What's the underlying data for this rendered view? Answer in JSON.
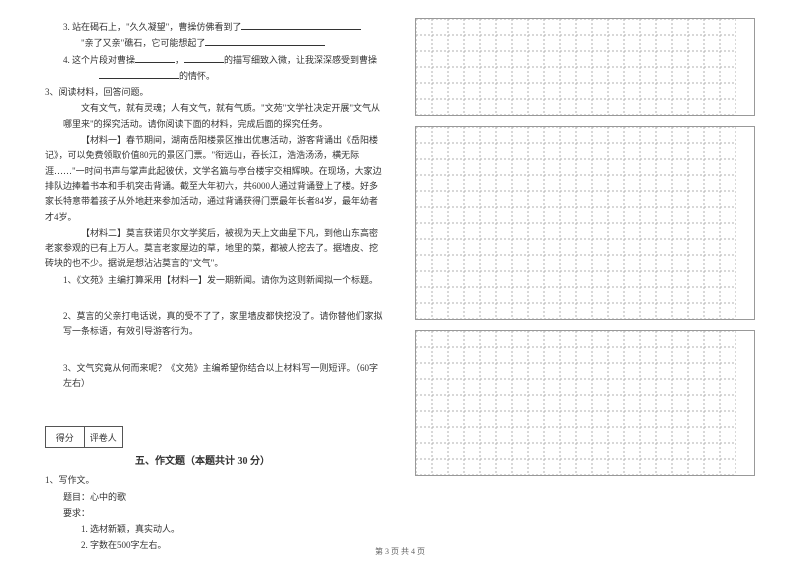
{
  "left": {
    "q3a": "3. 站在碣石上，\"久久凝望\"，曹操仿佛看到了",
    "q3b_pre": "\"亲了又亲\"礁石，它可能想起了",
    "q4_a": "4. 这个片段对曹操",
    "q4_b": "，",
    "q4_c": "的描写细致入微，让我深深感受到曹操",
    "q4_d": "的情怀。",
    "reading_intro": "3、阅读材料，回答问题。",
    "p1": "文有文气，就有灵魂；人有文气，就有气质。\"文苑\"文学社决定开展\"文气从哪里来\"的探究活动。请你阅读下面的材料，完成后面的探究任务。",
    "m1": "【材料一】春节期间，湖南岳阳楼景区推出优惠活动，游客背诵出《岳阳楼记》，可以免费领取价值80元的景区门票。\"衔远山，吞长江，浩浩汤汤，横无际涯……\"一时间书声与掌声此起彼伏，文学名篇与亭台楼宇交相辉映。在现场，大家边排队边捧着书本和手机突击背诵。截至大年初六，共6000人通过背诵登上了楼。好多家长特意带着孩子从外地赶来参加活动，通过背诵获得门票最年长者84岁，最年幼者才4岁。",
    "m2": "【材料二】莫言获诺贝尔文学奖后，被视为天上文曲星下凡，到他山东高密老家参观的已有上万人。莫言老家屋边的草，地里的菜，都被人挖去了。据墙皮、挖砖块的也不少。据说是想沾沾莫言的\"文气\"。",
    "q1": "1、《文苑》主编打算采用【材料一】发一期新闻。请你为这则新闻拟一个标题。",
    "q2": "2、莫言的父亲打电话说，真的受不了了，家里墙皮都快挖没了。请你替他们家拟写一条标语，有效引导游客行为。",
    "q3": "3、文气究竟从何而来呢？《文苑》主编希望你结合以上材料写一则短评。（60字左右）",
    "score_l": "得分",
    "score_r": "评卷人",
    "title5": "五、作文题（本题共计 30 分）",
    "essay_intro": "1、写作文。",
    "essay_topic": "题目：心中的歌",
    "essay_req": "要求：",
    "essay_r1": "1. 选材新颖，真实动人。",
    "essay_r2": "2. 字数在500字左右。"
  },
  "grids": {
    "cols": 20,
    "box1_rows": 6,
    "box2_rows": 12,
    "box3_rows": 9,
    "cell": 16,
    "stroke": "#b0b0b0",
    "dash": "2,2"
  },
  "footer": "第 3 页 共 4 页"
}
